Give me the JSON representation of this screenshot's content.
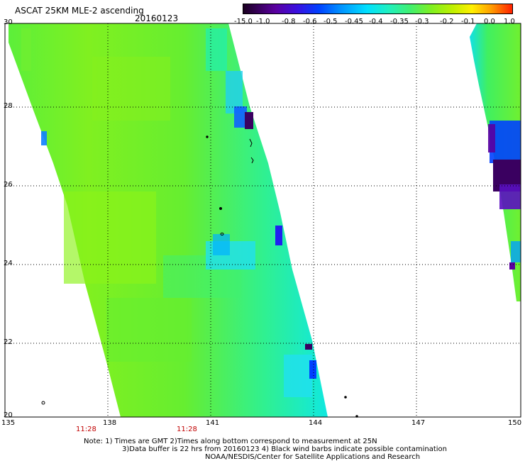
{
  "header": {
    "title": "ASCAT 25KM MLE-2 ascending",
    "date": "20160123"
  },
  "colorbar": {
    "labels": [
      "-15.0",
      "-1.0",
      "-0.8",
      "-0.6",
      "-0.5",
      "-0.45",
      "-0.4",
      "-0.35",
      "-0.3",
      "-0.2",
      "-0.1",
      "0.0",
      "1.0"
    ],
    "colors": [
      "#1a0020",
      "#5a00a0",
      "#0040ff",
      "#00e0ff",
      "#40f070",
      "#c0f000",
      "#ff2000"
    ]
  },
  "map": {
    "lat_labels": [
      "30",
      "28",
      "26",
      "24",
      "22",
      "20"
    ],
    "lon_labels": [
      "135",
      "138",
      "141",
      "144",
      "147",
      "150"
    ],
    "pass_times": [
      "11:28",
      "11:28"
    ]
  },
  "footer": {
    "note1": "Note: 1) Times are GMT 2)Times along bottom correspond to measurement at 25N",
    "note2": "3)Data buffer is 22 hrs from 20160123 4) Black wind barbs indicate possible contamination",
    "credit": "NOAA/NESDIS/Center for Satellite Applications and Research"
  }
}
